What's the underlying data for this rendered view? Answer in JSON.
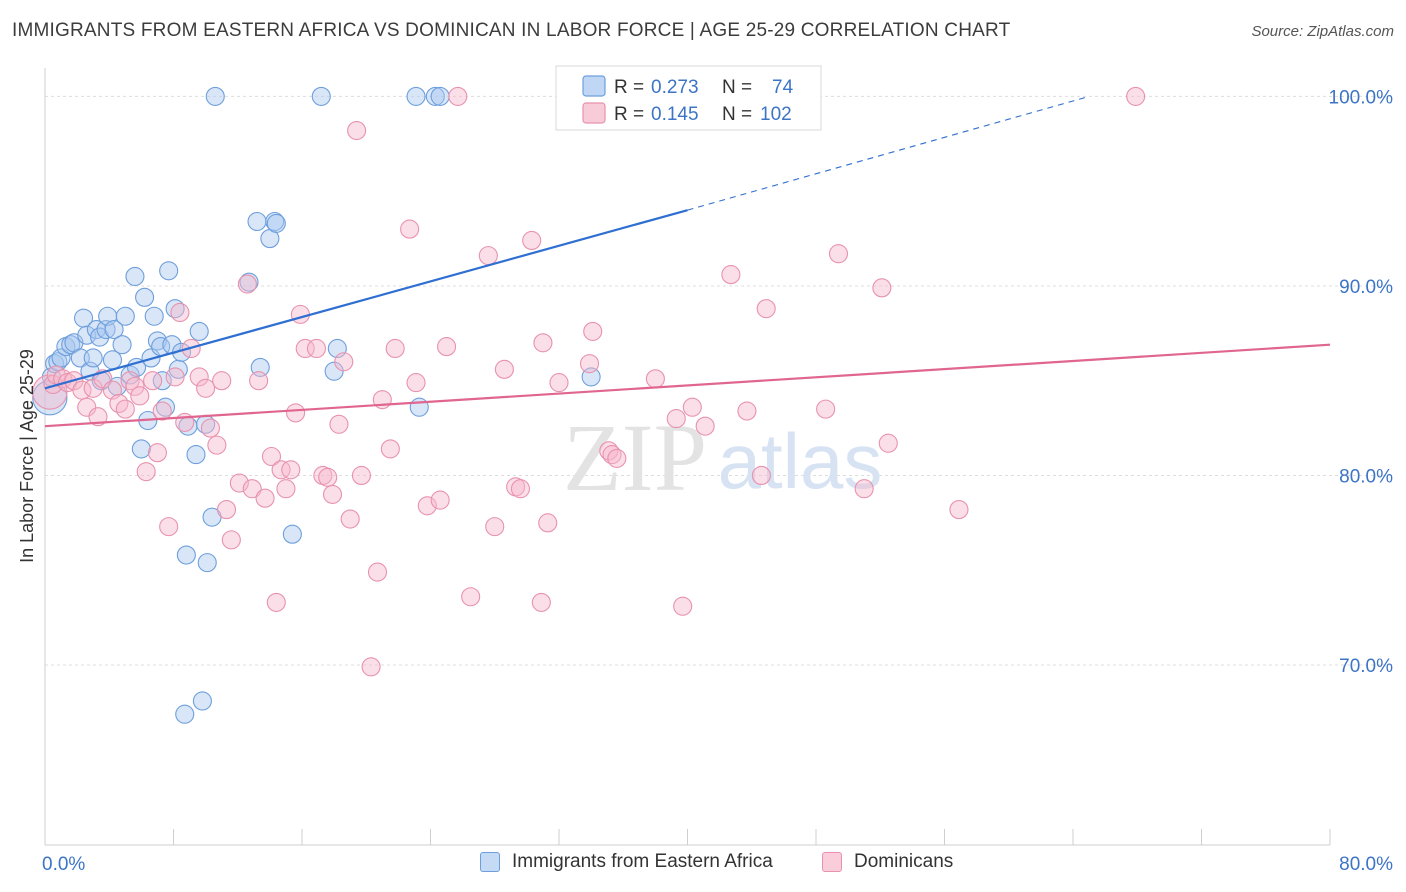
{
  "title": "IMMIGRANTS FROM EASTERN AFRICA VS DOMINICAN IN LABOR FORCE | AGE 25-29 CORRELATION CHART",
  "source": "Source: ZipAtlas.com",
  "watermark": {
    "zip": "ZIP",
    "atlas": "atlas"
  },
  "colors": {
    "blue_fill": "#a9c8f0",
    "blue_stroke": "#6e9fdc",
    "blue_line": "#2f6fd1",
    "pink_fill": "#f6b9cb",
    "pink_stroke": "#e892ae",
    "pink_line": "#e0658f",
    "axis_label": "#3d74c6",
    "grid": "#dddddd"
  },
  "legend_box": {
    "rows": [
      {
        "r_label": "R =",
        "r_value": "0.273",
        "n_label": "N =",
        "n_value": "74",
        "series": "blue"
      },
      {
        "r_label": "R =",
        "r_value": "0.145",
        "n_label": "N =",
        "n_value": "102",
        "series": "pink"
      }
    ]
  },
  "legend_bottom": [
    {
      "label": "Immigrants from Eastern Africa",
      "series": "blue"
    },
    {
      "label": "Dominicans",
      "series": "pink"
    }
  ],
  "chart_data": {
    "type": "scatter",
    "title": "IMMIGRANTS FROM EASTERN AFRICA VS DOMINICAN IN LABOR FORCE | AGE 25-29 CORRELATION CHART",
    "xlabel": "",
    "ylabel": "In Labor Force | Age 25-29",
    "xlim": [
      0,
      80
    ],
    "ylim": [
      60.5,
      101.5
    ],
    "x_tick_labels": [
      "0.0%",
      "80.0%"
    ],
    "y_ticks": [
      70,
      80,
      90,
      100
    ],
    "y_tick_labels": [
      "70.0%",
      "80.0%",
      "90.0%",
      "100.0%"
    ],
    "grid": true,
    "series": [
      {
        "name": "Immigrants from Eastern Africa",
        "color": "blue",
        "r": 0.273,
        "n": 74,
        "trend": {
          "x0": 0,
          "y0": 84.6,
          "x1": 40,
          "y1": 94.0,
          "dashed_to": {
            "x": 65,
            "y": 100.0
          }
        },
        "points": [
          [
            0.3,
            84.1,
            1.9
          ],
          [
            0.4,
            85.2,
            1.0
          ],
          [
            0.6,
            85.9,
            1.0
          ],
          [
            0.8,
            86.0,
            1.0
          ],
          [
            1.0,
            86.2,
            1.0
          ],
          [
            1.3,
            86.8,
            1.0
          ],
          [
            1.6,
            86.9,
            1.0
          ],
          [
            1.8,
            87.0,
            1.0
          ],
          [
            2.2,
            86.2,
            1.0
          ],
          [
            2.4,
            88.3,
            1.0
          ],
          [
            2.6,
            87.4,
            1.0
          ],
          [
            2.8,
            85.5,
            1.0
          ],
          [
            3.0,
            86.2,
            1.0
          ],
          [
            3.2,
            87.7,
            1.0
          ],
          [
            3.4,
            87.3,
            1.0
          ],
          [
            3.5,
            85.0,
            1.0
          ],
          [
            3.8,
            87.7,
            1.0
          ],
          [
            3.9,
            88.4,
            1.0
          ],
          [
            4.2,
            86.1,
            1.0
          ],
          [
            4.3,
            87.7,
            1.0
          ],
          [
            4.5,
            84.7,
            1.0
          ],
          [
            4.8,
            86.9,
            1.0
          ],
          [
            5.0,
            88.4,
            1.0
          ],
          [
            5.3,
            85.3,
            1.0
          ],
          [
            5.6,
            90.5,
            1.0
          ],
          [
            5.7,
            85.7,
            1.0
          ],
          [
            6.0,
            81.4,
            1.0
          ],
          [
            6.2,
            89.4,
            1.0
          ],
          [
            6.4,
            82.9,
            1.0
          ],
          [
            6.6,
            86.2,
            1.0
          ],
          [
            6.8,
            88.4,
            1.0
          ],
          [
            7.0,
            87.1,
            1.0
          ],
          [
            7.2,
            86.8,
            1.0
          ],
          [
            7.3,
            85.0,
            1.0
          ],
          [
            7.5,
            83.6,
            1.0
          ],
          [
            7.7,
            90.8,
            1.0
          ],
          [
            7.9,
            86.9,
            1.0
          ],
          [
            8.1,
            88.8,
            1.0
          ],
          [
            8.3,
            85.6,
            1.0
          ],
          [
            8.5,
            86.5,
            1.0
          ],
          [
            8.7,
            67.4,
            1.0
          ],
          [
            8.8,
            75.8,
            1.0
          ],
          [
            8.9,
            82.6,
            1.0
          ],
          [
            9.4,
            81.1,
            1.0
          ],
          [
            9.6,
            87.6,
            1.0
          ],
          [
            9.8,
            68.1,
            1.0
          ],
          [
            10.0,
            82.7,
            1.0
          ],
          [
            10.1,
            75.4,
            1.0
          ],
          [
            10.4,
            77.8,
            1.0
          ],
          [
            10.6,
            100.0,
            1.0
          ],
          [
            12.7,
            90.2,
            1.0
          ],
          [
            13.2,
            93.4,
            1.0
          ],
          [
            13.4,
            85.7,
            1.0
          ],
          [
            14.0,
            92.5,
            1.0
          ],
          [
            14.3,
            93.4,
            1.0
          ],
          [
            14.4,
            93.3,
            1.0
          ],
          [
            15.4,
            76.9,
            1.0
          ],
          [
            17.2,
            100.0,
            1.0
          ],
          [
            18.0,
            85.5,
            1.0
          ],
          [
            18.2,
            86.7,
            1.0
          ],
          [
            23.1,
            100.0,
            1.0
          ],
          [
            23.3,
            83.6,
            1.0
          ],
          [
            24.3,
            100.0,
            1.0
          ],
          [
            24.6,
            100.0,
            1.0
          ],
          [
            34.0,
            85.2,
            1.0
          ]
        ]
      },
      {
        "name": "Dominicans",
        "color": "pink",
        "r": 0.145,
        "n": 102,
        "trend": {
          "x0": 0,
          "y0": 82.6,
          "x1": 80,
          "y1": 86.9
        },
        "points": [
          [
            0.3,
            84.4,
            1.9
          ],
          [
            0.5,
            84.8,
            1.0
          ],
          [
            0.7,
            85.3,
            1.0
          ],
          [
            1.1,
            85.1,
            1.0
          ],
          [
            1.4,
            84.9,
            1.0
          ],
          [
            1.8,
            85.0,
            1.0
          ],
          [
            2.3,
            84.5,
            1.0
          ],
          [
            2.6,
            83.6,
            1.0
          ],
          [
            3.0,
            84.6,
            1.0
          ],
          [
            3.3,
            83.1,
            1.0
          ],
          [
            3.6,
            85.1,
            1.0
          ],
          [
            4.2,
            84.5,
            1.0
          ],
          [
            4.6,
            83.8,
            1.0
          ],
          [
            5.0,
            83.5,
            1.0
          ],
          [
            5.3,
            85.0,
            1.0
          ],
          [
            5.6,
            84.7,
            1.0
          ],
          [
            5.9,
            84.2,
            1.0
          ],
          [
            6.3,
            80.2,
            1.0
          ],
          [
            6.7,
            85.0,
            1.0
          ],
          [
            7.0,
            81.2,
            1.0
          ],
          [
            7.3,
            83.4,
            1.0
          ],
          [
            7.7,
            77.3,
            1.0
          ],
          [
            8.1,
            85.2,
            1.0
          ],
          [
            8.4,
            88.6,
            1.0
          ],
          [
            8.7,
            82.8,
            1.0
          ],
          [
            9.1,
            86.7,
            1.0
          ],
          [
            9.6,
            85.2,
            1.0
          ],
          [
            10.0,
            84.6,
            1.0
          ],
          [
            10.3,
            82.5,
            1.0
          ],
          [
            10.7,
            81.6,
            1.0
          ],
          [
            11.0,
            85.0,
            1.0
          ],
          [
            11.3,
            78.2,
            1.0
          ],
          [
            11.6,
            76.6,
            1.0
          ],
          [
            12.1,
            79.6,
            1.0
          ],
          [
            12.6,
            90.1,
            1.0
          ],
          [
            12.9,
            79.3,
            1.0
          ],
          [
            13.3,
            85.0,
            1.0
          ],
          [
            13.7,
            78.8,
            1.0
          ],
          [
            14.1,
            81.0,
            1.0
          ],
          [
            14.4,
            73.3,
            1.0
          ],
          [
            14.7,
            80.3,
            1.0
          ],
          [
            15.0,
            79.3,
            1.0
          ],
          [
            15.3,
            80.3,
            1.0
          ],
          [
            15.6,
            83.3,
            1.0
          ],
          [
            15.9,
            88.5,
            1.0
          ],
          [
            16.2,
            86.7,
            1.0
          ],
          [
            16.9,
            86.7,
            1.0
          ],
          [
            17.3,
            80.0,
            1.0
          ],
          [
            17.6,
            79.9,
            1.0
          ],
          [
            17.9,
            79.0,
            1.0
          ],
          [
            18.3,
            82.7,
            1.0
          ],
          [
            18.6,
            86.0,
            1.0
          ],
          [
            19.0,
            77.7,
            1.0
          ],
          [
            19.4,
            98.2,
            1.0
          ],
          [
            19.7,
            80.0,
            1.0
          ],
          [
            20.3,
            69.9,
            1.0
          ],
          [
            20.7,
            74.9,
            1.0
          ],
          [
            21.0,
            84.0,
            1.0
          ],
          [
            21.5,
            81.4,
            1.0
          ],
          [
            21.8,
            86.7,
            1.0
          ],
          [
            22.7,
            93.0,
            1.0
          ],
          [
            23.1,
            84.9,
            1.0
          ],
          [
            23.8,
            78.4,
            1.0
          ],
          [
            24.6,
            78.7,
            1.0
          ],
          [
            25.0,
            86.8,
            1.0
          ],
          [
            25.7,
            100.0,
            1.0
          ],
          [
            26.5,
            73.6,
            1.0
          ],
          [
            27.6,
            91.6,
            1.0
          ],
          [
            28.0,
            77.3,
            1.0
          ],
          [
            28.6,
            85.6,
            1.0
          ],
          [
            29.3,
            79.4,
            1.0
          ],
          [
            29.6,
            79.3,
            1.0
          ],
          [
            30.3,
            92.4,
            1.0
          ],
          [
            30.9,
            73.3,
            1.0
          ],
          [
            31.0,
            87.0,
            1.0
          ],
          [
            31.3,
            77.5,
            1.0
          ],
          [
            32.0,
            84.9,
            1.0
          ],
          [
            33.1,
            100.0,
            1.0
          ],
          [
            33.9,
            85.9,
            1.0
          ],
          [
            34.1,
            87.6,
            1.0
          ],
          [
            35.1,
            81.3,
            1.0
          ],
          [
            35.3,
            81.1,
            1.0
          ],
          [
            35.6,
            80.9,
            1.0
          ],
          [
            38.0,
            85.1,
            1.0
          ],
          [
            39.3,
            83.0,
            1.0
          ],
          [
            39.7,
            73.1,
            1.0
          ],
          [
            40.3,
            83.6,
            1.0
          ],
          [
            41.1,
            82.6,
            1.0
          ],
          [
            42.7,
            90.6,
            1.0
          ],
          [
            43.7,
            83.4,
            1.0
          ],
          [
            44.6,
            80.0,
            1.0
          ],
          [
            44.9,
            88.8,
            1.0
          ],
          [
            48.6,
            83.5,
            1.0
          ],
          [
            49.4,
            91.7,
            1.0
          ],
          [
            51.0,
            79.3,
            1.0
          ],
          [
            52.1,
            89.9,
            1.0
          ],
          [
            52.5,
            81.7,
            1.0
          ],
          [
            56.9,
            78.2,
            1.0
          ],
          [
            67.9,
            100.0,
            1.0
          ]
        ]
      }
    ]
  }
}
